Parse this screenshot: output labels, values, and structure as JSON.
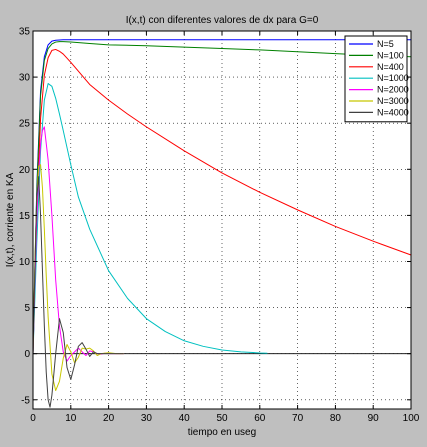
{
  "chart_data": {
    "type": "line",
    "title": "I(x,t) con diferentes valores de dx para G=0",
    "xlabel": "tiempo en useg",
    "ylabel": "I(x,t), corriente en KA",
    "xlim": [
      0,
      100
    ],
    "ylim": [
      -6,
      35
    ],
    "xticks": [
      0,
      10,
      20,
      30,
      40,
      50,
      60,
      70,
      80,
      90,
      100
    ],
    "yticks": [
      -5,
      0,
      5,
      10,
      15,
      20,
      25,
      30,
      35
    ],
    "xtick_labels": [
      "0",
      "10",
      "20",
      "30",
      "40",
      "50",
      "60",
      "70",
      "80",
      "90",
      "100"
    ],
    "ytick_labels": [
      "-5",
      "0",
      "5",
      "10",
      "15",
      "20",
      "25",
      "30",
      "35"
    ],
    "grid": true,
    "grid_style": "dotted",
    "legend_position": "top-right",
    "zero_line": true,
    "series": [
      {
        "name": "N=5",
        "color": "#0000ff",
        "x": [
          0,
          1,
          2,
          3,
          4,
          5,
          6,
          8,
          10,
          15,
          20,
          40,
          60,
          80,
          100
        ],
        "y": [
          0,
          18,
          28.5,
          32.2,
          33.5,
          33.9,
          34.0,
          34.05,
          34.05,
          34.05,
          34.05,
          34.05,
          34.05,
          34.05,
          34.05
        ]
      },
      {
        "name": "N=100",
        "color": "#008000",
        "x": [
          0,
          1,
          2,
          3,
          4,
          5,
          6,
          7,
          8,
          10,
          15,
          20,
          30,
          40,
          50,
          60,
          70,
          80,
          90,
          100
        ],
        "y": [
          0,
          17.5,
          28,
          31.8,
          33.1,
          33.6,
          33.8,
          33.85,
          33.85,
          33.8,
          33.65,
          33.5,
          33.4,
          33.25,
          33.1,
          32.95,
          32.75,
          32.55,
          32.35,
          32.2
        ]
      },
      {
        "name": "N=400",
        "color": "#ff0000",
        "x": [
          0,
          1,
          2,
          3,
          4,
          5,
          6,
          7,
          8,
          10,
          15,
          20,
          25,
          30,
          40,
          50,
          60,
          70,
          80,
          90,
          100
        ],
        "y": [
          0,
          15,
          25.5,
          30.2,
          32.1,
          32.9,
          33.0,
          32.8,
          32.5,
          31.6,
          29.2,
          27.5,
          26.0,
          24.6,
          22.0,
          19.6,
          17.5,
          15.6,
          13.8,
          12.2,
          10.7
        ]
      },
      {
        "name": "N=1000",
        "color": "#00c0c0",
        "x": [
          0,
          1,
          2,
          3,
          4,
          5,
          6,
          7,
          8,
          10,
          12,
          15,
          20,
          25,
          30,
          35,
          40,
          45,
          50,
          55,
          60,
          62
        ],
        "y": [
          0,
          12,
          22,
          27.5,
          29.3,
          29.0,
          27.7,
          26.0,
          24.2,
          20.5,
          17.0,
          13.5,
          9.0,
          6.0,
          3.8,
          2.4,
          1.4,
          0.8,
          0.4,
          0.2,
          0.08,
          0.05
        ]
      },
      {
        "name": "N=2000",
        "color": "#ff00ff",
        "x": [
          0,
          0.5,
          1,
          1.5,
          2,
          2.5,
          3,
          4,
          5,
          6,
          7,
          8,
          9,
          10,
          11,
          12,
          13,
          14,
          15,
          16,
          17,
          18,
          19,
          20,
          22,
          24
        ],
        "y": [
          0,
          8,
          14.5,
          19.5,
          22.8,
          24.2,
          24.6,
          21,
          15,
          8,
          3,
          0.2,
          -0.8,
          -0.2,
          0.2,
          0.6,
          0.2,
          -0.2,
          0.3,
          0.2,
          0.0,
          -0.05,
          0.05,
          0.0,
          0.0,
          0.0
        ]
      },
      {
        "name": "N=3000",
        "color": "#c8c800",
        "x": [
          0,
          0.5,
          1,
          1.5,
          2,
          2.5,
          3,
          3.5,
          4,
          5,
          6,
          7,
          8,
          9,
          10,
          11,
          12,
          13,
          14,
          15,
          16,
          17,
          18,
          20,
          22,
          24
        ],
        "y": [
          0,
          10,
          17,
          20.3,
          20.5,
          18,
          13.5,
          8.5,
          4,
          -2.2,
          -4.0,
          -3.0,
          -0.5,
          1.0,
          0.2,
          -1.0,
          -0.4,
          0.6,
          0.5,
          0.6,
          0.3,
          -0.2,
          0.0,
          0.1,
          0.0,
          0.0
        ]
      },
      {
        "name": "N=4000",
        "color": "#404040",
        "x": [
          0,
          0.5,
          1,
          1.5,
          2,
          2.5,
          3,
          3.5,
          4,
          4.5,
          5,
          6,
          7,
          8,
          9,
          10,
          11,
          12,
          13,
          14,
          15,
          16,
          17,
          18,
          20,
          22,
          24
        ],
        "y": [
          0,
          9,
          17,
          19.2,
          15,
          9,
          3,
          -2,
          -5,
          -5.8,
          -4.5,
          0,
          3.8,
          2.3,
          -1.5,
          -2.8,
          -1.2,
          0.8,
          1.2,
          0.5,
          -0.3,
          0.2,
          0.0,
          0.0,
          0.0,
          0.0,
          0.0
        ]
      }
    ]
  }
}
